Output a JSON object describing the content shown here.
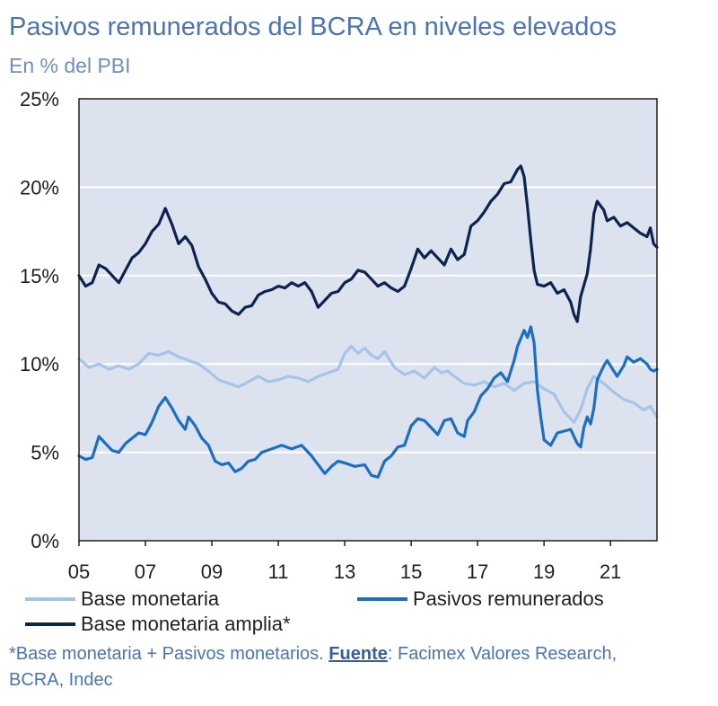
{
  "chart_data": {
    "type": "line",
    "title": "Pasivos remunerados del BCRA en niveles elevados",
    "subtitle": "En % del PBI",
    "ylim": [
      0,
      25
    ],
    "yticks": [
      "0%",
      "5%",
      "10%",
      "15%",
      "20%",
      "25%"
    ],
    "xlim": [
      2005.0,
      2022.4
    ],
    "xticks": [
      {
        "value": 2005,
        "label": "05"
      },
      {
        "value": 2007,
        "label": "07"
      },
      {
        "value": 2009,
        "label": "09"
      },
      {
        "value": 2011,
        "label": "11"
      },
      {
        "value": 2013,
        "label": "13"
      },
      {
        "value": 2015,
        "label": "15"
      },
      {
        "value": 2017,
        "label": "17"
      },
      {
        "value": 2019,
        "label": "19"
      },
      {
        "value": 2021,
        "label": "21"
      }
    ],
    "series": [
      {
        "name": "Base monetaria",
        "color": "#a6c4ea",
        "points": [
          [
            2005.0,
            10.3
          ],
          [
            2005.3,
            9.8
          ],
          [
            2005.6,
            10.0
          ],
          [
            2005.9,
            9.7
          ],
          [
            2006.2,
            9.9
          ],
          [
            2006.5,
            9.7
          ],
          [
            2006.8,
            10.0
          ],
          [
            2007.1,
            10.6
          ],
          [
            2007.4,
            10.5
          ],
          [
            2007.7,
            10.7
          ],
          [
            2008.0,
            10.4
          ],
          [
            2008.3,
            10.2
          ],
          [
            2008.6,
            10.0
          ],
          [
            2008.9,
            9.6
          ],
          [
            2009.2,
            9.1
          ],
          [
            2009.5,
            8.9
          ],
          [
            2009.8,
            8.7
          ],
          [
            2010.1,
            9.0
          ],
          [
            2010.4,
            9.3
          ],
          [
            2010.7,
            9.0
          ],
          [
            2011.0,
            9.1
          ],
          [
            2011.3,
            9.3
          ],
          [
            2011.6,
            9.2
          ],
          [
            2011.9,
            9.0
          ],
          [
            2012.2,
            9.3
          ],
          [
            2012.5,
            9.5
          ],
          [
            2012.8,
            9.7
          ],
          [
            2013.0,
            10.6
          ],
          [
            2013.2,
            11.0
          ],
          [
            2013.4,
            10.6
          ],
          [
            2013.6,
            10.9
          ],
          [
            2013.8,
            10.5
          ],
          [
            2014.0,
            10.3
          ],
          [
            2014.2,
            10.7
          ],
          [
            2014.5,
            9.8
          ],
          [
            2014.8,
            9.4
          ],
          [
            2015.1,
            9.6
          ],
          [
            2015.4,
            9.2
          ],
          [
            2015.7,
            9.8
          ],
          [
            2015.9,
            9.5
          ],
          [
            2016.1,
            9.6
          ],
          [
            2016.3,
            9.3
          ],
          [
            2016.6,
            8.9
          ],
          [
            2016.9,
            8.8
          ],
          [
            2017.2,
            9.0
          ],
          [
            2017.5,
            8.7
          ],
          [
            2017.8,
            8.9
          ],
          [
            2018.1,
            8.5
          ],
          [
            2018.4,
            8.9
          ],
          [
            2018.7,
            9.0
          ],
          [
            2019.0,
            8.6
          ],
          [
            2019.3,
            8.3
          ],
          [
            2019.6,
            7.3
          ],
          [
            2019.9,
            6.7
          ],
          [
            2020.1,
            7.4
          ],
          [
            2020.3,
            8.6
          ],
          [
            2020.5,
            9.3
          ],
          [
            2020.8,
            8.9
          ],
          [
            2021.1,
            8.4
          ],
          [
            2021.4,
            8.0
          ],
          [
            2021.7,
            7.8
          ],
          [
            2022.0,
            7.4
          ],
          [
            2022.2,
            7.6
          ],
          [
            2022.4,
            7.0
          ]
        ]
      },
      {
        "name": "Pasivos remunerados",
        "color": "#1c6ec3",
        "points": [
          [
            2005.0,
            4.8
          ],
          [
            2005.2,
            4.6
          ],
          [
            2005.4,
            4.7
          ],
          [
            2005.6,
            5.9
          ],
          [
            2005.8,
            5.5
          ],
          [
            2006.0,
            5.1
          ],
          [
            2006.2,
            5.0
          ],
          [
            2006.4,
            5.5
          ],
          [
            2006.6,
            5.8
          ],
          [
            2006.8,
            6.1
          ],
          [
            2007.0,
            6.0
          ],
          [
            2007.2,
            6.7
          ],
          [
            2007.4,
            7.6
          ],
          [
            2007.6,
            8.1
          ],
          [
            2007.8,
            7.5
          ],
          [
            2008.0,
            6.8
          ],
          [
            2008.2,
            6.3
          ],
          [
            2008.3,
            7.0
          ],
          [
            2008.5,
            6.5
          ],
          [
            2008.7,
            5.8
          ],
          [
            2008.9,
            5.4
          ],
          [
            2009.1,
            4.5
          ],
          [
            2009.3,
            4.3
          ],
          [
            2009.5,
            4.4
          ],
          [
            2009.7,
            3.9
          ],
          [
            2009.9,
            4.1
          ],
          [
            2010.1,
            4.5
          ],
          [
            2010.3,
            4.6
          ],
          [
            2010.5,
            5.0
          ],
          [
            2010.8,
            5.2
          ],
          [
            2011.1,
            5.4
          ],
          [
            2011.4,
            5.2
          ],
          [
            2011.7,
            5.4
          ],
          [
            2012.0,
            4.8
          ],
          [
            2012.2,
            4.3
          ],
          [
            2012.4,
            3.8
          ],
          [
            2012.6,
            4.2
          ],
          [
            2012.8,
            4.5
          ],
          [
            2013.0,
            4.4
          ],
          [
            2013.3,
            4.2
          ],
          [
            2013.6,
            4.3
          ],
          [
            2013.8,
            3.7
          ],
          [
            2014.0,
            3.6
          ],
          [
            2014.2,
            4.5
          ],
          [
            2014.4,
            4.8
          ],
          [
            2014.6,
            5.3
          ],
          [
            2014.8,
            5.4
          ],
          [
            2015.0,
            6.5
          ],
          [
            2015.2,
            6.9
          ],
          [
            2015.4,
            6.8
          ],
          [
            2015.6,
            6.4
          ],
          [
            2015.8,
            6.0
          ],
          [
            2016.0,
            6.8
          ],
          [
            2016.2,
            6.9
          ],
          [
            2016.4,
            6.1
          ],
          [
            2016.6,
            5.9
          ],
          [
            2016.7,
            6.8
          ],
          [
            2016.9,
            7.3
          ],
          [
            2017.1,
            8.2
          ],
          [
            2017.3,
            8.6
          ],
          [
            2017.5,
            9.2
          ],
          [
            2017.7,
            9.5
          ],
          [
            2017.9,
            9.0
          ],
          [
            2018.0,
            9.6
          ],
          [
            2018.1,
            10.2
          ],
          [
            2018.2,
            11.0
          ],
          [
            2018.4,
            11.9
          ],
          [
            2018.5,
            11.5
          ],
          [
            2018.6,
            12.1
          ],
          [
            2018.7,
            11.2
          ],
          [
            2018.8,
            8.5
          ],
          [
            2018.9,
            7.0
          ],
          [
            2019.0,
            5.7
          ],
          [
            2019.2,
            5.4
          ],
          [
            2019.4,
            6.1
          ],
          [
            2019.6,
            6.2
          ],
          [
            2019.8,
            6.3
          ],
          [
            2020.0,
            5.5
          ],
          [
            2020.1,
            5.3
          ],
          [
            2020.2,
            6.4
          ],
          [
            2020.3,
            7.0
          ],
          [
            2020.4,
            6.6
          ],
          [
            2020.5,
            7.5
          ],
          [
            2020.6,
            9.1
          ],
          [
            2020.8,
            9.9
          ],
          [
            2020.9,
            10.2
          ],
          [
            2021.1,
            9.6
          ],
          [
            2021.2,
            9.3
          ],
          [
            2021.4,
            9.9
          ],
          [
            2021.5,
            10.4
          ],
          [
            2021.7,
            10.1
          ],
          [
            2021.9,
            10.3
          ],
          [
            2022.1,
            10.0
          ],
          [
            2022.2,
            9.7
          ],
          [
            2022.3,
            9.6
          ],
          [
            2022.4,
            9.7
          ]
        ]
      },
      {
        "name": "Base monetaria amplia*",
        "color": "#0d2350",
        "points": [
          [
            2005.0,
            15.0
          ],
          [
            2005.2,
            14.4
          ],
          [
            2005.4,
            14.6
          ],
          [
            2005.6,
            15.6
          ],
          [
            2005.8,
            15.4
          ],
          [
            2006.0,
            15.0
          ],
          [
            2006.2,
            14.6
          ],
          [
            2006.4,
            15.3
          ],
          [
            2006.6,
            16.0
          ],
          [
            2006.8,
            16.3
          ],
          [
            2007.0,
            16.8
          ],
          [
            2007.2,
            17.5
          ],
          [
            2007.4,
            17.9
          ],
          [
            2007.6,
            18.8
          ],
          [
            2007.8,
            17.9
          ],
          [
            2008.0,
            16.8
          ],
          [
            2008.2,
            17.2
          ],
          [
            2008.4,
            16.7
          ],
          [
            2008.6,
            15.5
          ],
          [
            2008.8,
            14.8
          ],
          [
            2009.0,
            14.0
          ],
          [
            2009.2,
            13.5
          ],
          [
            2009.4,
            13.4
          ],
          [
            2009.6,
            13.0
          ],
          [
            2009.8,
            12.8
          ],
          [
            2010.0,
            13.2
          ],
          [
            2010.2,
            13.3
          ],
          [
            2010.4,
            13.9
          ],
          [
            2010.6,
            14.1
          ],
          [
            2010.8,
            14.2
          ],
          [
            2011.0,
            14.4
          ],
          [
            2011.2,
            14.3
          ],
          [
            2011.4,
            14.6
          ],
          [
            2011.6,
            14.4
          ],
          [
            2011.8,
            14.6
          ],
          [
            2012.0,
            14.1
          ],
          [
            2012.2,
            13.2
          ],
          [
            2012.4,
            13.6
          ],
          [
            2012.6,
            14.0
          ],
          [
            2012.8,
            14.1
          ],
          [
            2013.0,
            14.6
          ],
          [
            2013.2,
            14.8
          ],
          [
            2013.4,
            15.3
          ],
          [
            2013.6,
            15.2
          ],
          [
            2013.8,
            14.8
          ],
          [
            2014.0,
            14.4
          ],
          [
            2014.2,
            14.6
          ],
          [
            2014.4,
            14.3
          ],
          [
            2014.6,
            14.1
          ],
          [
            2014.8,
            14.4
          ],
          [
            2015.0,
            15.4
          ],
          [
            2015.2,
            16.5
          ],
          [
            2015.4,
            16.0
          ],
          [
            2015.6,
            16.4
          ],
          [
            2015.8,
            16.0
          ],
          [
            2016.0,
            15.6
          ],
          [
            2016.2,
            16.5
          ],
          [
            2016.4,
            15.9
          ],
          [
            2016.6,
            16.2
          ],
          [
            2016.8,
            17.8
          ],
          [
            2017.0,
            18.1
          ],
          [
            2017.2,
            18.6
          ],
          [
            2017.4,
            19.2
          ],
          [
            2017.6,
            19.6
          ],
          [
            2017.8,
            20.2
          ],
          [
            2018.0,
            20.3
          ],
          [
            2018.2,
            21.0
          ],
          [
            2018.3,
            21.2
          ],
          [
            2018.4,
            20.6
          ],
          [
            2018.5,
            18.9
          ],
          [
            2018.6,
            17.0
          ],
          [
            2018.7,
            15.3
          ],
          [
            2018.8,
            14.5
          ],
          [
            2019.0,
            14.4
          ],
          [
            2019.2,
            14.6
          ],
          [
            2019.4,
            14.0
          ],
          [
            2019.6,
            14.2
          ],
          [
            2019.8,
            13.5
          ],
          [
            2019.9,
            12.8
          ],
          [
            2020.0,
            12.4
          ],
          [
            2020.1,
            13.8
          ],
          [
            2020.3,
            15.1
          ],
          [
            2020.4,
            16.5
          ],
          [
            2020.5,
            18.5
          ],
          [
            2020.6,
            19.2
          ],
          [
            2020.8,
            18.7
          ],
          [
            2020.9,
            18.1
          ],
          [
            2021.1,
            18.3
          ],
          [
            2021.3,
            17.8
          ],
          [
            2021.5,
            18.0
          ],
          [
            2021.7,
            17.7
          ],
          [
            2021.9,
            17.4
          ],
          [
            2022.1,
            17.2
          ],
          [
            2022.2,
            17.7
          ],
          [
            2022.3,
            16.8
          ],
          [
            2022.4,
            16.6
          ]
        ]
      }
    ],
    "legend": [
      "Base monetaria",
      "Pasivos remunerados",
      "Base monetaria amplia*"
    ]
  },
  "footnote": {
    "text_before": "*Base monetaria + Pasivos monetarios. ",
    "source_label": "Fuente",
    "text_after": ": Facimex Valores Research, BCRA, Indec"
  }
}
